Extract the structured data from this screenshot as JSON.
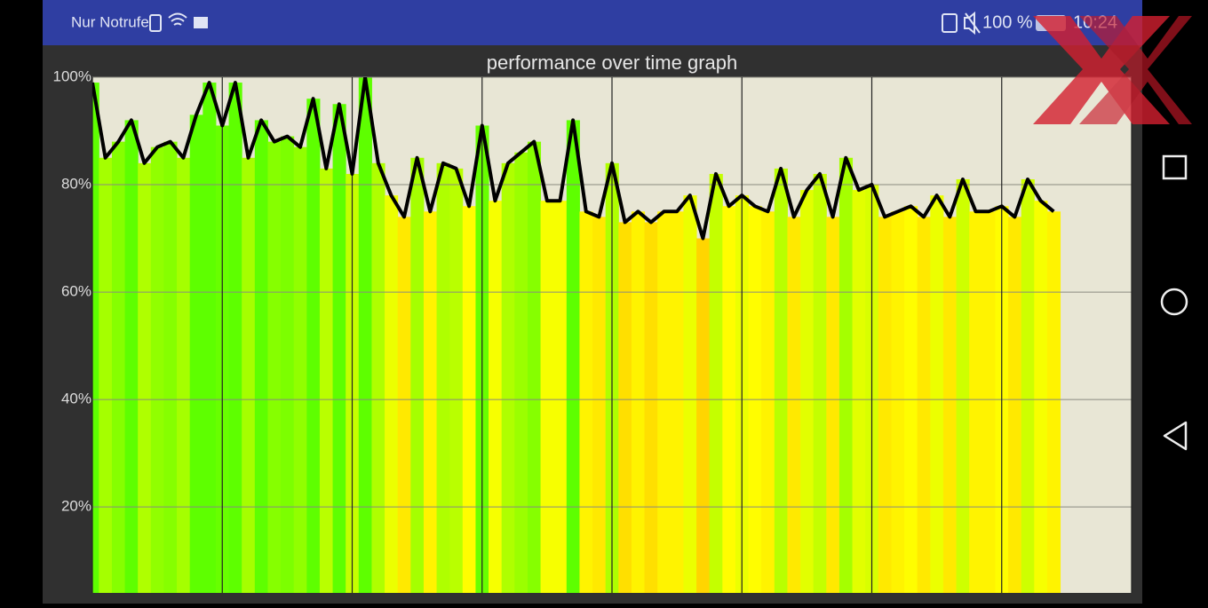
{
  "status_bar": {
    "left_text": "Nur Notrufe",
    "battery": "100 %",
    "time": "10:24"
  },
  "chart_data": {
    "type": "bar-line",
    "title": "performance over time graph",
    "x": [
      0,
      1,
      2,
      3,
      4,
      5,
      6,
      7,
      8,
      9,
      10,
      11,
      12,
      13,
      14,
      15,
      16,
      17,
      18,
      19,
      20,
      21,
      22,
      23,
      24,
      25,
      26,
      27,
      28,
      29,
      30,
      31,
      32,
      33,
      34,
      35,
      36,
      37,
      38,
      39,
      40,
      41,
      42,
      43,
      44,
      45,
      46,
      47,
      48,
      49,
      50,
      51,
      52,
      53,
      54,
      55,
      56,
      57,
      58,
      59,
      60,
      61,
      62,
      63,
      64,
      65,
      66,
      67,
      68,
      69,
      70,
      71,
      72,
      73,
      74
    ],
    "values": [
      99,
      85,
      88,
      92,
      84,
      87,
      88,
      85,
      93,
      99,
      91,
      99,
      85,
      92,
      88,
      89,
      87,
      96,
      83,
      95,
      82,
      100,
      84,
      78,
      74,
      85,
      75,
      84,
      83,
      76,
      91,
      77,
      84,
      86,
      88,
      77,
      77,
      92,
      75,
      74,
      84,
      73,
      75,
      73,
      75,
      75,
      78,
      70,
      82,
      76,
      78,
      76,
      75,
      83,
      74,
      79,
      82,
      74,
      85,
      79,
      80,
      74,
      75,
      76,
      74,
      78,
      74,
      81,
      75,
      75,
      76,
      74,
      81,
      77,
      75
    ],
    "line_color": "#000000",
    "background": "#e8e6d5",
    "xlim": [
      0,
      80
    ],
    "xticks": [
      0,
      10,
      20,
      30,
      40,
      50,
      60,
      70,
      80
    ],
    "ylim": [
      4,
      100
    ],
    "yticks": [
      {
        "value": 20,
        "label": "20%"
      },
      {
        "value": 40,
        "label": "40%"
      },
      {
        "value": 60,
        "label": "60%"
      },
      {
        "value": 80,
        "label": "80%"
      },
      {
        "value": 100,
        "label": "100%"
      }
    ],
    "grid": true
  }
}
